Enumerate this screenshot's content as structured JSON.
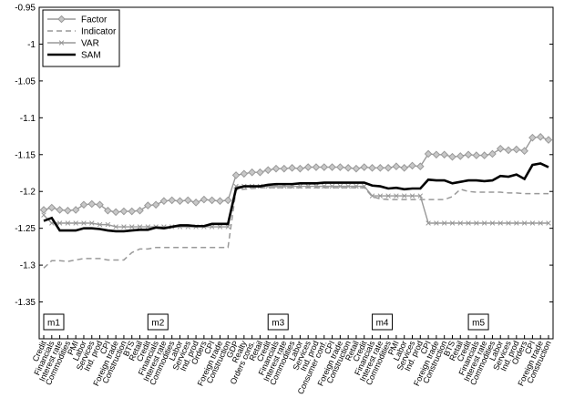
{
  "chart_data": {
    "type": "line",
    "ylim": [
      -1.4,
      -0.95
    ],
    "yticks": [
      -0.95,
      -1,
      -1.05,
      -1.1,
      -1.15,
      -1.2,
      -1.25,
      -1.3,
      -1.35
    ],
    "ytick_labels": [
      "-0.95",
      "-1",
      "-1.05",
      "-1.1",
      "-1.15",
      "-1.2",
      "-1.25",
      "-1.3",
      "-1.35"
    ],
    "grid": false,
    "legend_position": "top-left",
    "categories": [
      "Credit",
      "Financials",
      "Interest rate",
      "Commodities",
      "PMI",
      "Labor",
      "Services",
      "Ind. prod",
      "CPI",
      "Foreign trade",
      "Construction",
      "BTS",
      "Retail",
      "Credit",
      "Financials",
      "Interest rate",
      "Commodities",
      "Labor",
      "Services",
      "Ind. prod",
      "Orders",
      "CPI",
      "Foreign trade",
      "Construction",
      "GDP",
      "Realty",
      "Orders cons.",
      "Retail",
      "Credit",
      "Financials",
      "Interest rate",
      "Commodities",
      "Labor",
      "Services",
      "Ind. prod",
      "Consumer conf.",
      "CPI",
      "Foreign trade",
      "Construction",
      "Retail",
      "Credit",
      "Financials",
      "Interest rate",
      "Commodities",
      "PMI",
      "Labor",
      "Services",
      "Ind. prod",
      "CPI",
      "Foreign trade",
      "Construction",
      "BTS",
      "Retail",
      "Credit",
      "Financials",
      "Interest rate",
      "Commodities",
      "Labor",
      "Services",
      "Ind. prod",
      "Orders",
      "CPI",
      "Foreign trade",
      "Construction"
    ],
    "series": [
      {
        "name": "Factor",
        "color": "#999999",
        "style": "solid-diamond",
        "values": [
          -1.225,
          -1.222,
          -1.225,
          -1.226,
          -1.225,
          -1.218,
          -1.217,
          -1.218,
          -1.226,
          -1.228,
          -1.227,
          -1.227,
          -1.226,
          -1.219,
          -1.218,
          -1.213,
          -1.212,
          -1.213,
          -1.212,
          -1.215,
          -1.211,
          -1.212,
          -1.213,
          -1.212,
          -1.178,
          -1.176,
          -1.174,
          -1.174,
          -1.171,
          -1.169,
          -1.169,
          -1.168,
          -1.169,
          -1.167,
          -1.167,
          -1.167,
          -1.167,
          -1.167,
          -1.168,
          -1.169,
          -1.167,
          -1.168,
          -1.168,
          -1.168,
          -1.166,
          -1.168,
          -1.165,
          -1.166,
          -1.149,
          -1.15,
          -1.15,
          -1.153,
          -1.152,
          -1.15,
          -1.151,
          -1.151,
          -1.149,
          -1.142,
          -1.144,
          -1.143,
          -1.145,
          -1.127,
          -1.126,
          -1.13
        ]
      },
      {
        "name": "Indicator",
        "color": "#999999",
        "style": "dashed",
        "values": [
          -1.304,
          -1.294,
          -1.294,
          -1.295,
          -1.293,
          -1.291,
          -1.291,
          -1.291,
          -1.293,
          -1.293,
          -1.293,
          -1.283,
          -1.278,
          -1.278,
          -1.276,
          -1.276,
          -1.276,
          -1.276,
          -1.276,
          -1.276,
          -1.276,
          -1.276,
          -1.276,
          -1.276,
          -1.198,
          -1.197,
          -1.196,
          -1.195,
          -1.195,
          -1.195,
          -1.195,
          -1.195,
          -1.195,
          -1.195,
          -1.195,
          -1.195,
          -1.195,
          -1.195,
          -1.195,
          -1.195,
          -1.195,
          -1.207,
          -1.21,
          -1.211,
          -1.211,
          -1.211,
          -1.211,
          -1.211,
          -1.211,
          -1.211,
          -1.211,
          -1.207,
          -1.197,
          -1.2,
          -1.201,
          -1.201,
          -1.201,
          -1.201,
          -1.202,
          -1.202,
          -1.203,
          -1.203,
          -1.203,
          -1.203
        ]
      },
      {
        "name": "VAR",
        "color": "#999999",
        "style": "solid-x",
        "values": [
          -1.232,
          -1.243,
          -1.243,
          -1.243,
          -1.243,
          -1.243,
          -1.243,
          -1.245,
          -1.245,
          -1.248,
          -1.248,
          -1.248,
          -1.248,
          -1.248,
          -1.248,
          -1.248,
          -1.248,
          -1.248,
          -1.248,
          -1.248,
          -1.248,
          -1.248,
          -1.248,
          -1.248,
          -1.193,
          -1.193,
          -1.193,
          -1.193,
          -1.193,
          -1.193,
          -1.193,
          -1.193,
          -1.193,
          -1.193,
          -1.193,
          -1.193,
          -1.193,
          -1.193,
          -1.193,
          -1.193,
          -1.193,
          -1.206,
          -1.206,
          -1.206,
          -1.206,
          -1.206,
          -1.206,
          -1.206,
          -1.243,
          -1.243,
          -1.243,
          -1.243,
          -1.243,
          -1.243,
          -1.243,
          -1.243,
          -1.243,
          -1.243,
          -1.243,
          -1.243,
          -1.243,
          -1.243,
          -1.243,
          -1.243
        ]
      },
      {
        "name": "SAM",
        "color": "#000000",
        "style": "solid-thick",
        "values": [
          -1.24,
          -1.236,
          -1.253,
          -1.253,
          -1.253,
          -1.25,
          -1.25,
          -1.251,
          -1.253,
          -1.254,
          -1.254,
          -1.253,
          -1.252,
          -1.252,
          -1.249,
          -1.25,
          -1.248,
          -1.246,
          -1.246,
          -1.247,
          -1.247,
          -1.244,
          -1.244,
          -1.244,
          -1.196,
          -1.193,
          -1.193,
          -1.193,
          -1.191,
          -1.19,
          -1.19,
          -1.19,
          -1.189,
          -1.189,
          -1.189,
          -1.188,
          -1.188,
          -1.188,
          -1.188,
          -1.188,
          -1.188,
          -1.192,
          -1.193,
          -1.196,
          -1.195,
          -1.197,
          -1.196,
          -1.196,
          -1.184,
          -1.185,
          -1.185,
          -1.189,
          -1.187,
          -1.185,
          -1.185,
          -1.186,
          -1.185,
          -1.179,
          -1.18,
          -1.177,
          -1.183,
          -1.164,
          -1.162,
          -1.167
        ]
      }
    ],
    "block_labels": [
      {
        "text": "m1",
        "at": 0
      },
      {
        "text": "m2",
        "at": 13
      },
      {
        "text": "m3",
        "at": 28
      },
      {
        "text": "m4",
        "at": 41
      },
      {
        "text": "m5",
        "at": 53
      }
    ]
  }
}
